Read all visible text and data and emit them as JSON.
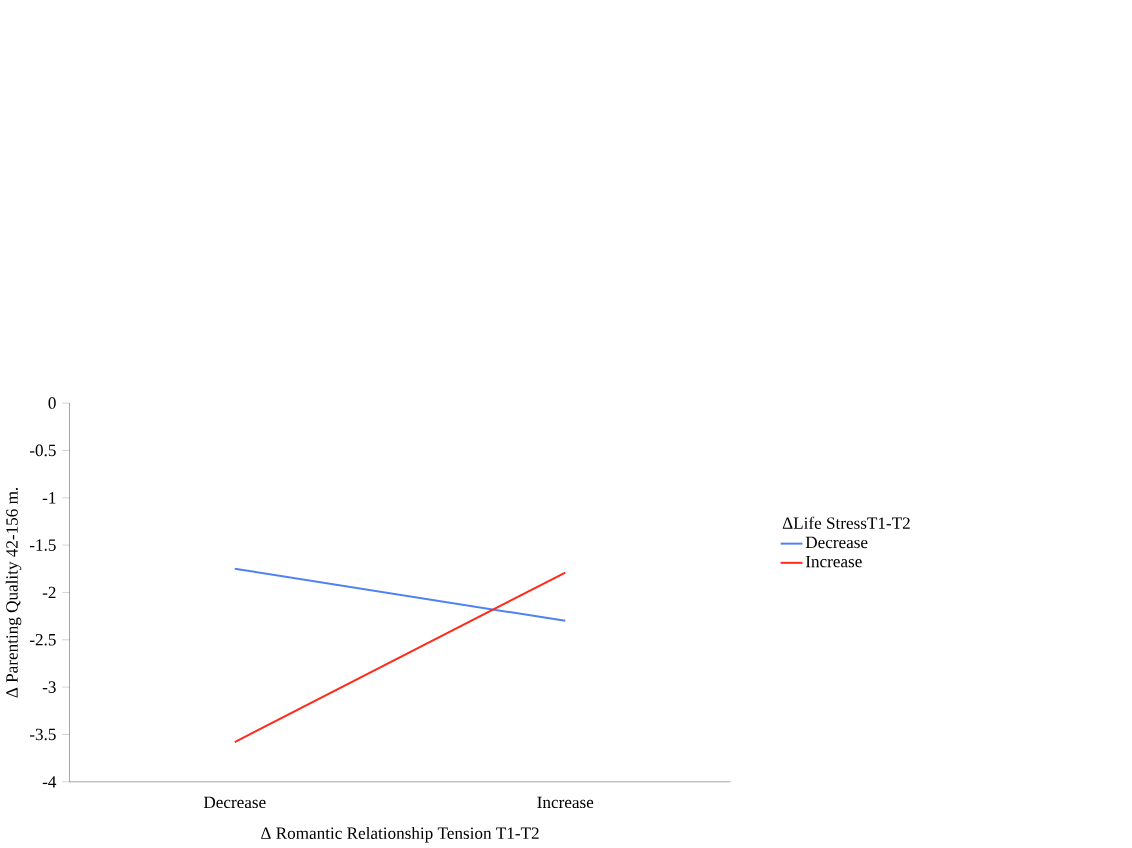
{
  "chart_data": {
    "type": "line",
    "xlabel": "Δ Romantic Relationship Tension T1-T2",
    "ylabel": "Δ Parenting Quality 42-156 m.",
    "legend_title": "ΔLife StressT1-T2",
    "categories": [
      "Decrease",
      "Increase"
    ],
    "series": [
      {
        "name": "Decrease",
        "color": "#4f81f0",
        "values": [
          -1.75,
          -2.3
        ]
      },
      {
        "name": "Increase",
        "color": "#ff2a1a",
        "values": [
          -3.58,
          -1.79
        ]
      }
    ],
    "ylim": [
      -4,
      0
    ],
    "yticks": [
      {
        "value": -4,
        "label": "-4"
      },
      {
        "value": -3.5,
        "label": "-3.5"
      },
      {
        "value": -3,
        "label": "-3"
      },
      {
        "value": -2.5,
        "label": "-2.5"
      },
      {
        "value": -2,
        "label": "-2"
      },
      {
        "value": -1.5,
        "label": "-1.5"
      },
      {
        "value": -1,
        "label": "-1"
      },
      {
        "value": -0.5,
        "label": "-0.5"
      },
      {
        "value": 0,
        "label": "0"
      }
    ],
    "legend": "right",
    "grid": false,
    "marker": "none",
    "line_style": "solid"
  }
}
